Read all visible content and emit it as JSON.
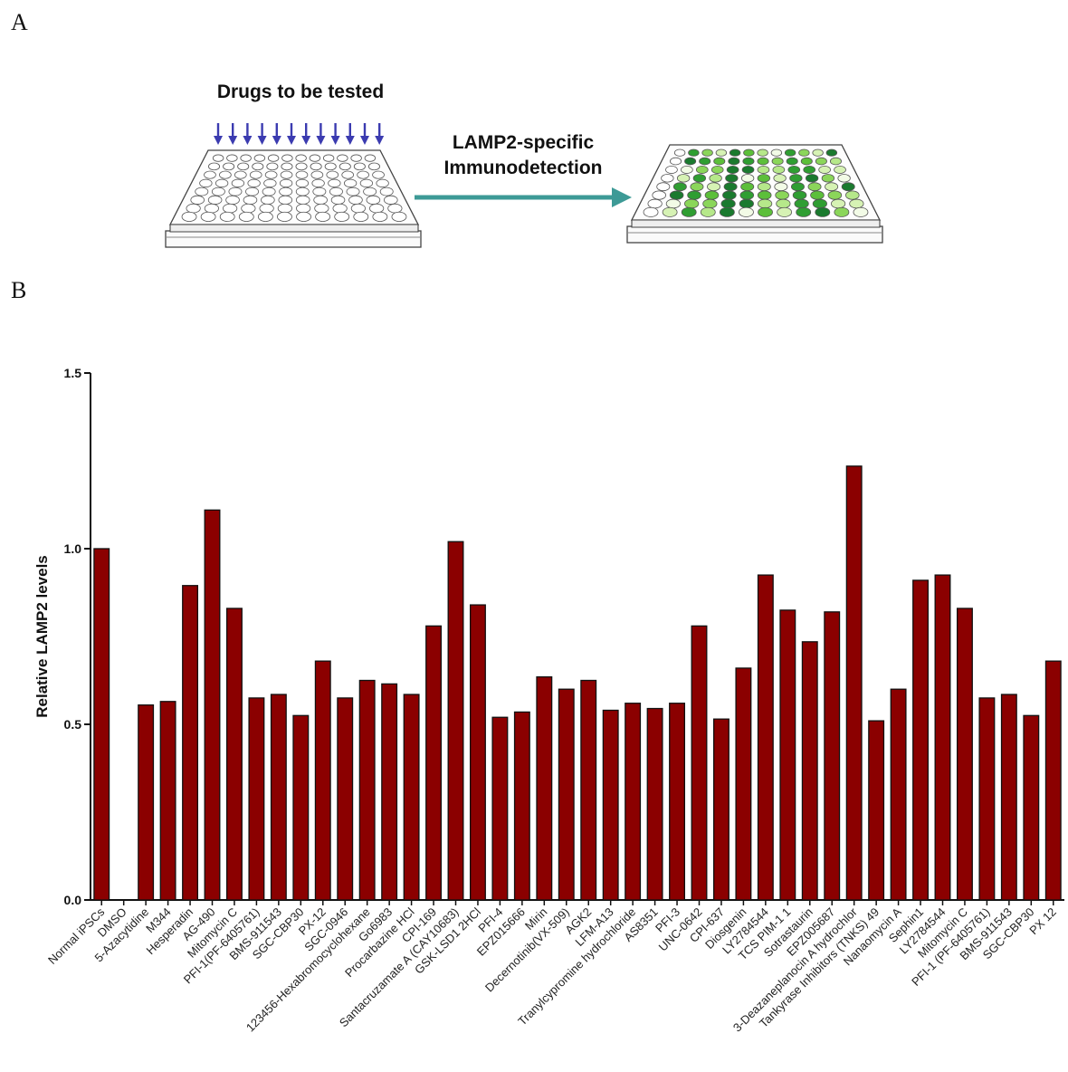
{
  "panels": {
    "a": "A",
    "b": "B"
  },
  "schematic": {
    "drugs_label": "Drugs to be tested",
    "step_line1": "LAMP2-specific",
    "step_line2": "Immunodetection",
    "arrow_color": "#3d9a96",
    "drug_arrow_color": "#3b3bb0"
  },
  "chart_data": {
    "type": "bar",
    "title": "",
    "xlabel": "",
    "ylabel": "Relative LAMP2 levels",
    "ylim": [
      0,
      1.5
    ],
    "yticks": [
      "0.0",
      "0.5",
      "1.0",
      "1.5"
    ],
    "bar_color": "#8b0000",
    "categories": [
      "Normal iPSCs",
      "DMSO",
      "5-Azacytidine",
      "M344",
      "Hesperadin",
      "AG-490",
      "Mitomycin C",
      "PFI-1(PF-6405761)",
      "BMS-911543",
      "SGC-CBP30",
      "PX-12",
      "SGC-0946",
      "123456-Hexabromocyclohexane",
      "Go6983",
      "Procarbazine HCl",
      "CPI-169",
      "Santacruzamate A (CAY10683)",
      "GSK-LSD1 2HCl",
      "PFI-4",
      "EPZ015666",
      "Mirin",
      "Decernotinib(VX-509)",
      "AGK2",
      "LFM-A13",
      "Tranylcypromine hydrochloride",
      "AS8351",
      "PFI-3",
      "UNC-0642",
      "CPI-637",
      "Diosgenin",
      "LY2784544",
      "TCS PIM-1 1",
      "Sotrastaurin",
      "EPZ005687",
      "3-Deazaneplanocin A hydrochlor",
      "Tankyrase Inhibitors (TNKS) 49",
      "Nanaomycin A",
      "Sephin1",
      "LY2784544",
      "Mitomycin C",
      "PFI-1 (PF-6405761)",
      "BMS-911543",
      "SGC-CBP30",
      "PX 12"
    ],
    "values": [
      1.0,
      0.0,
      0.555,
      0.565,
      0.895,
      1.11,
      0.83,
      0.575,
      0.585,
      0.525,
      0.68,
      0.575,
      0.625,
      0.615,
      0.585,
      0.78,
      1.02,
      0.84,
      0.52,
      0.535,
      0.635,
      0.6,
      0.625,
      0.54,
      0.56,
      0.545,
      0.56,
      0.78,
      0.515,
      0.66,
      0.925,
      0.825,
      0.735,
      0.82,
      1.235,
      0.51,
      0.6,
      0.91,
      0.925,
      0.83,
      0.575,
      0.585,
      0.525,
      0.68
    ]
  }
}
